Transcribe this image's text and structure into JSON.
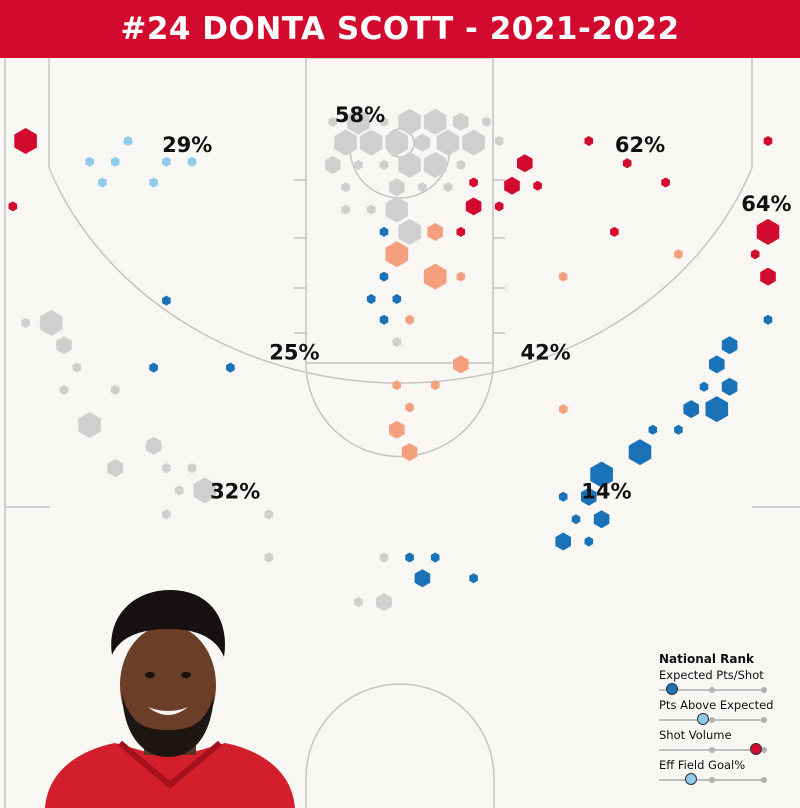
{
  "header": {
    "title": "#24 DONTA SCOTT - 2021-2022"
  },
  "colors": {
    "header_red": "#d10a2e",
    "court_bg": "#f8f7f4",
    "court_line": "#c4c4c4",
    "very_hot": "#d10a2e",
    "hot": "#f4a07e",
    "neutral": "#cfcfcf",
    "cool": "#8fcbea",
    "cold": "#1a73b8"
  },
  "chart_data": {
    "type": "scatter",
    "title": "#24 DONTA SCOTT - 2021-2022",
    "description_note": "Hexbin shot chart; x/y in court feet (x: sideline-to-sideline 0-50, y: distance from baseline). size = shot volume, color = efficiency zone.",
    "xlim": [
      0,
      50
    ],
    "ylim": [
      0,
      47
    ],
    "zones": [
      {
        "id": "left-corner-three",
        "pct": "29%",
        "lx": 11.7,
        "ly": 5.9
      },
      {
        "id": "paint",
        "pct": "58%",
        "lx": 22.5,
        "ly": 4.0
      },
      {
        "id": "right-corner-three",
        "pct": "62%",
        "lx": 40.0,
        "ly": 5.9
      },
      {
        "id": "right-wing-three",
        "pct": "64%",
        "lx": 47.9,
        "ly": 9.6
      },
      {
        "id": "left-midrange",
        "pct": "25%",
        "lx": 18.4,
        "ly": 18.9
      },
      {
        "id": "right-midrange",
        "pct": "42%",
        "lx": 34.1,
        "ly": 18.9
      },
      {
        "id": "left-top-three",
        "pct": "32%",
        "lx": 14.7,
        "ly": 27.6
      },
      {
        "id": "right-top-three",
        "pct": "14%",
        "lx": 37.9,
        "ly": 27.6
      }
    ],
    "shots": [
      {
        "x": 1.6,
        "y": 5.2,
        "s": 3,
        "c": "very_hot"
      },
      {
        "x": 0.8,
        "y": 9.3,
        "s": 1,
        "c": "very_hot"
      },
      {
        "x": 8.0,
        "y": 5.2,
        "s": 1,
        "c": "cool"
      },
      {
        "x": 5.6,
        "y": 6.5,
        "s": 1,
        "c": "cool"
      },
      {
        "x": 7.2,
        "y": 6.5,
        "s": 1,
        "c": "cool"
      },
      {
        "x": 10.4,
        "y": 6.5,
        "s": 1,
        "c": "cool"
      },
      {
        "x": 12.0,
        "y": 6.5,
        "s": 1,
        "c": "cool"
      },
      {
        "x": 6.4,
        "y": 7.8,
        "s": 1,
        "c": "cool"
      },
      {
        "x": 9.6,
        "y": 7.8,
        "s": 1,
        "c": "cool"
      },
      {
        "x": 10.4,
        "y": 15.2,
        "s": 1,
        "c": "cold"
      },
      {
        "x": 1.6,
        "y": 16.6,
        "s": 1,
        "c": "neutral"
      },
      {
        "x": 3.2,
        "y": 16.6,
        "s": 3,
        "c": "neutral"
      },
      {
        "x": 4.0,
        "y": 18.0,
        "s": 2,
        "c": "neutral"
      },
      {
        "x": 4.8,
        "y": 19.4,
        "s": 1,
        "c": "neutral"
      },
      {
        "x": 9.6,
        "y": 19.4,
        "s": 1,
        "c": "cold"
      },
      {
        "x": 14.4,
        "y": 19.4,
        "s": 1,
        "c": "cold"
      },
      {
        "x": 4.0,
        "y": 20.8,
        "s": 1,
        "c": "neutral"
      },
      {
        "x": 7.2,
        "y": 20.8,
        "s": 1,
        "c": "neutral"
      },
      {
        "x": 5.6,
        "y": 23.0,
        "s": 3,
        "c": "neutral"
      },
      {
        "x": 9.6,
        "y": 24.3,
        "s": 2,
        "c": "neutral"
      },
      {
        "x": 7.2,
        "y": 25.7,
        "s": 2,
        "c": "neutral"
      },
      {
        "x": 10.4,
        "y": 25.7,
        "s": 1,
        "c": "neutral"
      },
      {
        "x": 12.0,
        "y": 25.7,
        "s": 1,
        "c": "neutral"
      },
      {
        "x": 11.2,
        "y": 27.1,
        "s": 1,
        "c": "neutral"
      },
      {
        "x": 12.8,
        "y": 27.1,
        "s": 3,
        "c": "neutral"
      },
      {
        "x": 10.4,
        "y": 28.6,
        "s": 1,
        "c": "neutral"
      },
      {
        "x": 16.8,
        "y": 28.6,
        "s": 1,
        "c": "neutral"
      },
      {
        "x": 16.8,
        "y": 31.3,
        "s": 1,
        "c": "neutral"
      },
      {
        "x": 24.0,
        "y": 31.3,
        "s": 1,
        "c": "neutral"
      },
      {
        "x": 25.6,
        "y": 31.3,
        "s": 1,
        "c": "cold"
      },
      {
        "x": 27.2,
        "y": 31.3,
        "s": 1,
        "c": "cold"
      },
      {
        "x": 26.4,
        "y": 32.6,
        "s": 2,
        "c": "cold"
      },
      {
        "x": 29.6,
        "y": 32.6,
        "s": 1,
        "c": "cold"
      },
      {
        "x": 24.0,
        "y": 34.1,
        "s": 2,
        "c": "neutral"
      },
      {
        "x": 22.4,
        "y": 34.1,
        "s": 1,
        "c": "neutral"
      },
      {
        "x": 20.8,
        "y": 4.0,
        "s": 1,
        "c": "neutral"
      },
      {
        "x": 22.4,
        "y": 4.0,
        "s": 3,
        "c": "neutral"
      },
      {
        "x": 24.0,
        "y": 4.0,
        "s": 1,
        "c": "neutral"
      },
      {
        "x": 25.6,
        "y": 4.0,
        "s": 3,
        "c": "neutral"
      },
      {
        "x": 27.2,
        "y": 4.0,
        "s": 3,
        "c": "neutral"
      },
      {
        "x": 28.8,
        "y": 4.0,
        "s": 2,
        "c": "neutral"
      },
      {
        "x": 30.4,
        "y": 4.0,
        "s": 1,
        "c": "neutral"
      },
      {
        "x": 21.6,
        "y": 5.3,
        "s": 3,
        "c": "neutral"
      },
      {
        "x": 23.2,
        "y": 5.3,
        "s": 3,
        "c": "neutral"
      },
      {
        "x": 24.8,
        "y": 5.3,
        "s": 3,
        "c": "neutral"
      },
      {
        "x": 26.4,
        "y": 5.3,
        "s": 2,
        "c": "neutral"
      },
      {
        "x": 28.0,
        "y": 5.3,
        "s": 3,
        "c": "neutral"
      },
      {
        "x": 29.6,
        "y": 5.3,
        "s": 3,
        "c": "neutral"
      },
      {
        "x": 20.8,
        "y": 6.7,
        "s": 2,
        "c": "neutral"
      },
      {
        "x": 22.4,
        "y": 6.7,
        "s": 1,
        "c": "neutral"
      },
      {
        "x": 24.0,
        "y": 6.7,
        "s": 1,
        "c": "neutral"
      },
      {
        "x": 25.6,
        "y": 6.7,
        "s": 3,
        "c": "neutral"
      },
      {
        "x": 27.2,
        "y": 6.7,
        "s": 3,
        "c": "neutral"
      },
      {
        "x": 28.8,
        "y": 6.7,
        "s": 1,
        "c": "neutral"
      },
      {
        "x": 21.6,
        "y": 8.1,
        "s": 1,
        "c": "neutral"
      },
      {
        "x": 24.8,
        "y": 8.1,
        "s": 2,
        "c": "neutral"
      },
      {
        "x": 26.4,
        "y": 8.1,
        "s": 1,
        "c": "neutral"
      },
      {
        "x": 28.0,
        "y": 8.1,
        "s": 1,
        "c": "neutral"
      },
      {
        "x": 21.6,
        "y": 9.5,
        "s": 1,
        "c": "neutral"
      },
      {
        "x": 23.2,
        "y": 9.5,
        "s": 1,
        "c": "neutral"
      },
      {
        "x": 24.8,
        "y": 9.5,
        "s": 3,
        "c": "neutral"
      },
      {
        "x": 24.0,
        "y": 10.9,
        "s": 1,
        "c": "cold"
      },
      {
        "x": 25.6,
        "y": 10.9,
        "s": 3,
        "c": "neutral"
      },
      {
        "x": 27.2,
        "y": 10.9,
        "s": 2,
        "c": "hot"
      },
      {
        "x": 28.8,
        "y": 10.9,
        "s": 1,
        "c": "very_hot"
      },
      {
        "x": 24.8,
        "y": 12.3,
        "s": 3,
        "c": "hot"
      },
      {
        "x": 24.0,
        "y": 13.7,
        "s": 1,
        "c": "cold"
      },
      {
        "x": 27.2,
        "y": 13.7,
        "s": 3,
        "c": "hot"
      },
      {
        "x": 28.8,
        "y": 13.7,
        "s": 1,
        "c": "hot"
      },
      {
        "x": 23.2,
        "y": 15.1,
        "s": 1,
        "c": "cold"
      },
      {
        "x": 24.8,
        "y": 15.1,
        "s": 1,
        "c": "cold"
      },
      {
        "x": 24.0,
        "y": 16.4,
        "s": 1,
        "c": "cold"
      },
      {
        "x": 25.6,
        "y": 16.4,
        "s": 1,
        "c": "hot"
      },
      {
        "x": 24.8,
        "y": 17.8,
        "s": 1,
        "c": "neutral"
      },
      {
        "x": 28.8,
        "y": 19.2,
        "s": 2,
        "c": "hot"
      },
      {
        "x": 24.8,
        "y": 20.5,
        "s": 1,
        "c": "hot"
      },
      {
        "x": 27.2,
        "y": 20.5,
        "s": 1,
        "c": "hot"
      },
      {
        "x": 25.6,
        "y": 21.9,
        "s": 1,
        "c": "hot"
      },
      {
        "x": 24.8,
        "y": 23.3,
        "s": 2,
        "c": "hot"
      },
      {
        "x": 25.6,
        "y": 24.7,
        "s": 2,
        "c": "hot"
      },
      {
        "x": 31.2,
        "y": 5.2,
        "s": 1,
        "c": "neutral"
      },
      {
        "x": 32.8,
        "y": 6.6,
        "s": 2,
        "c": "very_hot"
      },
      {
        "x": 29.6,
        "y": 7.8,
        "s": 1,
        "c": "very_hot"
      },
      {
        "x": 32.0,
        "y": 8.0,
        "s": 2,
        "c": "very_hot"
      },
      {
        "x": 33.6,
        "y": 8.0,
        "s": 1,
        "c": "very_hot"
      },
      {
        "x": 31.2,
        "y": 9.3,
        "s": 1,
        "c": "very_hot"
      },
      {
        "x": 29.6,
        "y": 9.3,
        "s": 2,
        "c": "very_hot"
      },
      {
        "x": 36.8,
        "y": 5.2,
        "s": 1,
        "c": "very_hot"
      },
      {
        "x": 39.2,
        "y": 6.6,
        "s": 1,
        "c": "very_hot"
      },
      {
        "x": 41.6,
        "y": 7.8,
        "s": 1,
        "c": "very_hot"
      },
      {
        "x": 48.0,
        "y": 5.2,
        "s": 1,
        "c": "very_hot"
      },
      {
        "x": 38.4,
        "y": 10.9,
        "s": 1,
        "c": "very_hot"
      },
      {
        "x": 48.0,
        "y": 10.9,
        "s": 3,
        "c": "very_hot"
      },
      {
        "x": 47.2,
        "y": 12.3,
        "s": 1,
        "c": "very_hot"
      },
      {
        "x": 48.0,
        "y": 13.7,
        "s": 2,
        "c": "very_hot"
      },
      {
        "x": 42.4,
        "y": 12.3,
        "s": 1,
        "c": "hot"
      },
      {
        "x": 35.2,
        "y": 13.7,
        "s": 1,
        "c": "hot"
      },
      {
        "x": 48.0,
        "y": 16.4,
        "s": 1,
        "c": "cold"
      },
      {
        "x": 45.6,
        "y": 18.0,
        "s": 2,
        "c": "cold"
      },
      {
        "x": 44.8,
        "y": 19.2,
        "s": 2,
        "c": "cold"
      },
      {
        "x": 44.0,
        "y": 20.6,
        "s": 1,
        "c": "cold"
      },
      {
        "x": 45.6,
        "y": 20.6,
        "s": 2,
        "c": "cold"
      },
      {
        "x": 43.2,
        "y": 22.0,
        "s": 2,
        "c": "cold"
      },
      {
        "x": 44.8,
        "y": 22.0,
        "s": 3,
        "c": "cold"
      },
      {
        "x": 35.2,
        "y": 22.0,
        "s": 1,
        "c": "hot"
      },
      {
        "x": 42.4,
        "y": 23.3,
        "s": 1,
        "c": "cold"
      },
      {
        "x": 40.8,
        "y": 23.3,
        "s": 1,
        "c": "cold"
      },
      {
        "x": 40.0,
        "y": 24.7,
        "s": 3,
        "c": "cold"
      },
      {
        "x": 37.6,
        "y": 26.1,
        "s": 3,
        "c": "cold"
      },
      {
        "x": 36.8,
        "y": 27.5,
        "s": 2,
        "c": "cold"
      },
      {
        "x": 35.2,
        "y": 27.5,
        "s": 1,
        "c": "cold"
      },
      {
        "x": 37.6,
        "y": 28.9,
        "s": 2,
        "c": "cold"
      },
      {
        "x": 36.0,
        "y": 28.9,
        "s": 1,
        "c": "cold"
      },
      {
        "x": 35.2,
        "y": 30.3,
        "s": 2,
        "c": "cold"
      },
      {
        "x": 36.8,
        "y": 30.3,
        "s": 1,
        "c": "cold"
      }
    ]
  },
  "legend": {
    "title": "National Rank",
    "items": [
      {
        "label": "Expected Pts/Shot",
        "rank": 0.12,
        "color": "#1a73b8"
      },
      {
        "label": "Pts Above Expected",
        "rank": 0.42,
        "color": "#8fcbea"
      },
      {
        "label": "Shot Volume",
        "rank": 0.92,
        "color": "#d10a2e"
      },
      {
        "label": "Eff Field Goal%",
        "rank": 0.3,
        "color": "#8fcbea"
      }
    ]
  }
}
